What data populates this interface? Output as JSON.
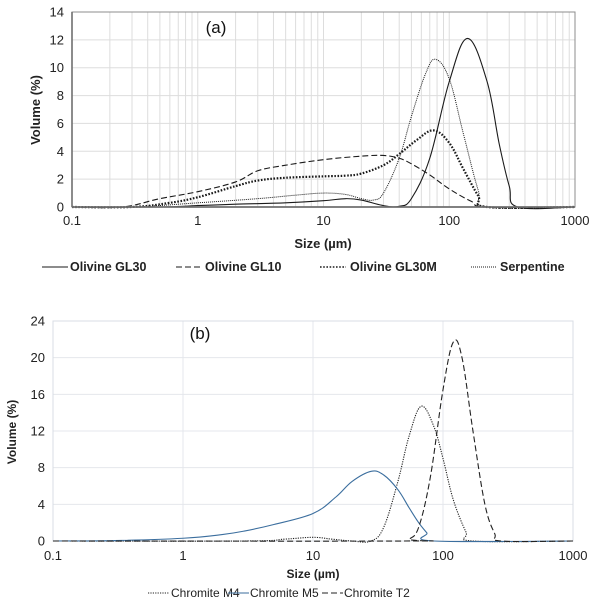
{
  "chart_data": [
    {
      "id": "a",
      "type": "line",
      "panel_label": "(a)",
      "title": "",
      "xlabel": "Size (µm)",
      "ylabel": "Volume (%)",
      "xscale": "log",
      "xlim": [
        0.1,
        1000
      ],
      "ylim": [
        0,
        14
      ],
      "xticks": [
        "0.1",
        "1",
        "10",
        "100",
        "1000"
      ],
      "yticks": [
        "0",
        "2",
        "4",
        "6",
        "8",
        "10",
        "12",
        "14"
      ],
      "grid": "on (major and minor log gridlines)",
      "legend_position": "bottom",
      "series": [
        {
          "name": "Olivine GL30",
          "style": "solid",
          "color": "#1a1a1a",
          "x": [
            0.1,
            0.5,
            1,
            2,
            5,
            10,
            15,
            20,
            30,
            40,
            50,
            70,
            100,
            140,
            200,
            250,
            300,
            350,
            1000
          ],
          "y": [
            0,
            0,
            0.1,
            0.2,
            0.3,
            0.45,
            0.6,
            0.5,
            0.1,
            0.05,
            0.6,
            3.5,
            9.0,
            12.1,
            9.0,
            4.5,
            1.5,
            0,
            0
          ]
        },
        {
          "name": "Olivine GL10",
          "style": "dashed",
          "color": "#1a1a1a",
          "x": [
            0.1,
            0.25,
            0.5,
            1,
            2,
            3,
            5,
            10,
            20,
            30,
            40,
            50,
            70,
            100,
            150,
            200,
            1000
          ],
          "y": [
            0,
            0,
            0.6,
            1.1,
            1.8,
            2.6,
            3.0,
            3.4,
            3.65,
            3.7,
            3.5,
            3.1,
            2.3,
            1.3,
            0.4,
            0,
            0
          ]
        },
        {
          "name": "Olivine GL30M",
          "style": "heavy-dotted",
          "color": "#1a1a1a",
          "x": [
            0.1,
            0.3,
            0.6,
            1,
            2,
            3,
            5,
            10,
            15,
            20,
            30,
            40,
            55,
            75,
            100,
            130,
            170,
            200,
            1000
          ],
          "y": [
            0,
            0,
            0.3,
            0.7,
            1.5,
            1.9,
            2.1,
            2.2,
            2.25,
            2.4,
            3.0,
            3.8,
            4.8,
            5.5,
            4.6,
            2.7,
            0.8,
            0,
            0
          ]
        },
        {
          "name": "Serpentine",
          "style": "fine-dotted",
          "color": "#1a1a1a",
          "x": [
            0.1,
            0.3,
            1,
            3,
            6,
            10,
            15,
            20,
            25,
            30,
            40,
            50,
            65,
            78,
            100,
            130,
            170,
            200,
            1000
          ],
          "y": [
            0,
            0,
            0.3,
            0.6,
            0.85,
            1.0,
            0.9,
            0.6,
            0.5,
            1.0,
            3.5,
            6.5,
            9.6,
            10.6,
            9.2,
            5.2,
            1.2,
            0,
            0
          ]
        }
      ]
    },
    {
      "id": "b",
      "type": "line",
      "panel_label": "(b)",
      "title": "",
      "xlabel": "Size (µm)",
      "ylabel": "Volume (%)",
      "xscale": "log",
      "xlim": [
        0.1,
        1000
      ],
      "ylim": [
        0,
        24
      ],
      "xticks": [
        "0.1",
        "1",
        "10",
        "100",
        "1000"
      ],
      "yticks": [
        "0",
        "4",
        "8",
        "12",
        "16",
        "20",
        "24"
      ],
      "grid": "on (major gridlines only)",
      "legend_position": "bottom",
      "series": [
        {
          "name": "Chromite M4",
          "style": "dotted",
          "color": "#222222",
          "x": [
            0.1,
            3,
            6,
            10,
            14,
            20,
            28,
            35,
            45,
            55,
            68,
            85,
            100,
            120,
            150,
            170,
            1000
          ],
          "y": [
            0,
            0,
            0.2,
            0.4,
            0.2,
            0,
            0,
            1.5,
            6.5,
            11.5,
            14.7,
            12.5,
            9.0,
            4.5,
            1.0,
            0,
            0
          ]
        },
        {
          "name": "Chromite M5",
          "style": "solid",
          "color": "#3b6e9e",
          "x": [
            0.1,
            0.3,
            1,
            2,
            3,
            5,
            10,
            15,
            20,
            28,
            35,
            45,
            55,
            65,
            75,
            85,
            1000
          ],
          "y": [
            0,
            0.05,
            0.3,
            0.7,
            1.1,
            1.8,
            3.0,
            4.8,
            6.5,
            7.6,
            7.2,
            5.6,
            3.6,
            2.0,
            0.9,
            0,
            0
          ]
        },
        {
          "name": "Chromite T2",
          "style": "dashed",
          "color": "#222222",
          "x": [
            0.1,
            50,
            55,
            65,
            80,
            100,
            120,
            140,
            170,
            210,
            250,
            280,
            1000
          ],
          "y": [
            0,
            0,
            0.2,
            1.5,
            7.0,
            16.5,
            21.7,
            20.0,
            12.0,
            4.0,
            0.8,
            0,
            0
          ]
        }
      ]
    }
  ]
}
